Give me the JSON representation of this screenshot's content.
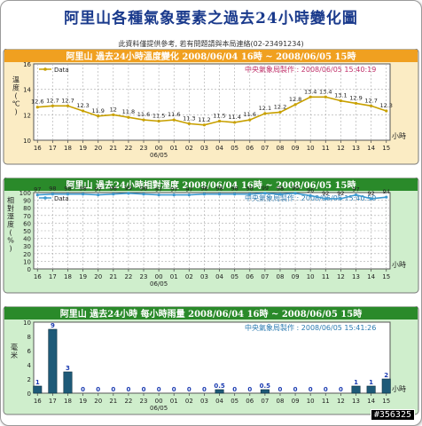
{
  "page": {
    "title": "阿里山各種氣象要素之過去24小時變化圖",
    "note": "此資料僅提供參考, 若有問題請與本局連絡",
    "tel": "(02-23491234)",
    "watermark": "#356325"
  },
  "colors": {
    "temp_header": "#f0a020",
    "temp_panel": "#fbecc4",
    "temp_line": "#c8a000",
    "hum_header": "#2a8a2a",
    "hum_panel": "#cfeecc",
    "hum_line": "#3d9ad0",
    "rain_header": "#2a8a2a",
    "rain_panel": "#cfeecc",
    "rain_bar": "#1e5a78",
    "plot_bg": "#ffffff"
  },
  "chart_data": [
    {
      "type": "line",
      "header_title": "阿里山 過去24小時溫度變化 2008/06/04 16時 ~ 2008/06/05 15時",
      "credit": "中央氣象局製作 : 2008/06/05 15:40:19",
      "legend": "Data",
      "ylabel": "溫度(℃)",
      "xunit": "小時",
      "date_label": "06/05",
      "date_under": "00",
      "categories": [
        "16",
        "17",
        "18",
        "19",
        "20",
        "21",
        "22",
        "23",
        "00",
        "01",
        "02",
        "03",
        "04",
        "05",
        "06",
        "07",
        "08",
        "09",
        "10",
        "11",
        "12",
        "13",
        "14",
        "15"
      ],
      "values": [
        12.6,
        12.7,
        12.7,
        12.3,
        11.9,
        12.0,
        11.8,
        11.6,
        11.5,
        11.6,
        11.3,
        11.2,
        11.5,
        11.4,
        11.6,
        12.1,
        12.2,
        12.8,
        13.4,
        13.4,
        13.1,
        12.9,
        12.7,
        12.3
      ],
      "yticks": [
        10,
        12,
        14,
        16
      ],
      "ylim": [
        10,
        16
      ],
      "grid": true
    },
    {
      "type": "line",
      "header_title": "阿里山 過去24小時相對溼度 2008/06/04 16時 ~ 2008/06/05 15時",
      "credit": "中央氣象局製作 : 2008/06/05 15:40:50",
      "legend": "Data",
      "ylabel": "相對溼度(%)",
      "xunit": "小時",
      "date_label": "06/05",
      "date_under": "00",
      "categories": [
        "16",
        "17",
        "18",
        "19",
        "20",
        "21",
        "22",
        "23",
        "00",
        "01",
        "02",
        "03",
        "04",
        "05",
        "06",
        "07",
        "08",
        "09",
        "10",
        "11",
        "12",
        "13",
        "14",
        "15"
      ],
      "values": [
        97,
        98,
        98,
        98,
        97,
        98,
        99,
        98,
        97,
        97,
        97,
        98,
        98,
        98,
        98,
        99,
        98,
        99,
        96,
        92,
        92,
        97,
        92,
        94
      ],
      "yticks": [
        0,
        10,
        20,
        30,
        40,
        50,
        60,
        70,
        80,
        90,
        100
      ],
      "ylim": [
        0,
        100
      ],
      "grid": true
    },
    {
      "type": "bar",
      "header_title": "阿里山 過去24小時 每小時雨量 2008/06/04 16時 ~ 2008/06/05 15時",
      "credit": "中央氣象局製作 : 2008/06/05 15:41:26",
      "ylabel": "毫米",
      "xunit": "小時",
      "date_label": "06/05",
      "date_under": "00",
      "categories": [
        "16",
        "17",
        "18",
        "19",
        "20",
        "21",
        "22",
        "23",
        "00",
        "01",
        "02",
        "03",
        "04",
        "05",
        "06",
        "07",
        "08",
        "09",
        "10",
        "11",
        "12",
        "13",
        "14",
        "15"
      ],
      "values": [
        1,
        9,
        3,
        0,
        0,
        0,
        0,
        0,
        0,
        0,
        0,
        0,
        0.5,
        0,
        0,
        0.5,
        0,
        0,
        0,
        0,
        0,
        1,
        1,
        2
      ],
      "value_labels": [
        "1",
        "9",
        "3",
        "0",
        "0",
        "0",
        "0",
        "0",
        "0",
        "0",
        "0",
        "0",
        "0.5",
        "0",
        "0",
        "0.5",
        "0",
        "0",
        "0",
        "0",
        "0",
        "1",
        "1",
        "2"
      ],
      "yticks": [
        0,
        2,
        4,
        6,
        8,
        10
      ],
      "ylim": [
        0,
        10
      ],
      "grid": false
    }
  ]
}
